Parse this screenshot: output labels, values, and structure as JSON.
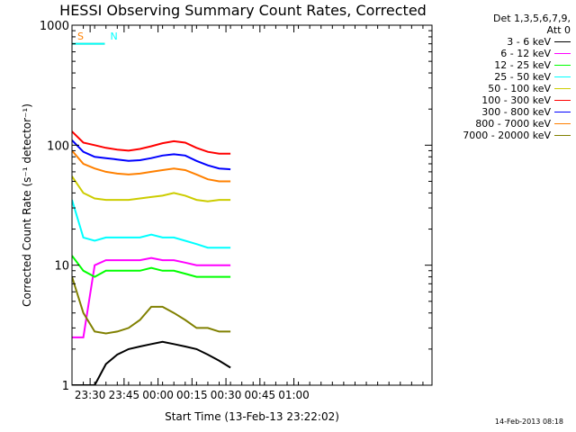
{
  "chart_data": {
    "type": "line",
    "title": "HESSI Observing Summary Count Rates, Corrected",
    "ylabel": "Corrected Count Rate (s⁻¹ detector⁻¹)",
    "xlabel": "Start Time (13-Feb-13 23:22:02)",
    "y_scale": "log",
    "ylim": [
      1,
      1000
    ],
    "xlim_minutes_after_start": [
      0,
      159
    ],
    "y_ticks": [
      "1",
      "10",
      "100",
      "1000"
    ],
    "x_ticks": [
      {
        "label": "23:30",
        "minute": 8
      },
      {
        "label": "23:45",
        "minute": 23
      },
      {
        "label": "00:00",
        "minute": 38
      },
      {
        "label": "00:15",
        "minute": 53
      },
      {
        "label": "00:30",
        "minute": 68
      },
      {
        "label": "00:45",
        "minute": 83
      },
      {
        "label": "01:00",
        "minute": 98
      }
    ],
    "legend_header": [
      "Det 1,3,5,6,7,9,",
      "Att 0"
    ],
    "series": [
      {
        "name": "3 - 6 keV",
        "color": "#000000",
        "x": [
          0,
          5,
          10,
          15,
          20,
          25,
          30,
          35,
          40,
          45,
          50,
          55,
          60,
          65,
          70
        ],
        "values": [
          1,
          1,
          1,
          1.5,
          1.8,
          2,
          2.1,
          2.2,
          2.3,
          2.2,
          2.1,
          2.0,
          1.8,
          1.6,
          1.4
        ]
      },
      {
        "name": "6 - 12 keV",
        "color": "#ff00ff",
        "x": [
          0,
          5,
          10,
          15,
          20,
          25,
          30,
          35,
          40,
          45,
          50,
          55,
          60,
          65,
          70
        ],
        "values": [
          2.5,
          2.5,
          10,
          11,
          11,
          11,
          11,
          11.5,
          11,
          11,
          10.5,
          10,
          10,
          10,
          10
        ]
      },
      {
        "name": "12 - 25 keV",
        "color": "#00ff00",
        "x": [
          0,
          5,
          10,
          15,
          20,
          25,
          30,
          35,
          40,
          45,
          50,
          55,
          60,
          65,
          70
        ],
        "values": [
          12,
          9,
          8,
          9,
          9,
          9,
          9,
          9.5,
          9,
          9,
          8.5,
          8,
          8,
          8,
          8
        ]
      },
      {
        "name": "25 - 50 keV",
        "color": "#00ffff",
        "x": [
          0,
          5,
          10,
          15,
          20,
          25,
          30,
          35,
          40,
          45,
          50,
          55,
          60,
          65,
          70
        ],
        "values": [
          35,
          17,
          16,
          17,
          17,
          17,
          17,
          18,
          17,
          17,
          16,
          15,
          14,
          14,
          14
        ]
      },
      {
        "name": "50 - 100 keV",
        "color": "#cccc00",
        "x": [
          0,
          5,
          10,
          15,
          20,
          25,
          30,
          35,
          40,
          45,
          50,
          55,
          60,
          65,
          70
        ],
        "values": [
          55,
          40,
          36,
          35,
          35,
          35,
          36,
          37,
          38,
          40,
          38,
          35,
          34,
          35,
          35
        ]
      },
      {
        "name": "100 - 300 keV",
        "color": "#ff0000",
        "x": [
          0,
          5,
          10,
          15,
          20,
          25,
          30,
          35,
          40,
          45,
          50,
          55,
          60,
          65,
          70
        ],
        "values": [
          130,
          105,
          100,
          95,
          92,
          90,
          93,
          98,
          104,
          108,
          105,
          95,
          88,
          85,
          85
        ]
      },
      {
        "name": "300 - 800 keV",
        "color": "#0000ff",
        "x": [
          0,
          5,
          10,
          15,
          20,
          25,
          30,
          35,
          40,
          45,
          50,
          55,
          60,
          65,
          70
        ],
        "values": [
          110,
          88,
          80,
          78,
          76,
          74,
          75,
          78,
          82,
          84,
          82,
          74,
          68,
          64,
          63
        ]
      },
      {
        "name": "800 - 7000 keV",
        "color": "#ff8000",
        "x": [
          0,
          5,
          10,
          15,
          20,
          25,
          30,
          35,
          40,
          45,
          50,
          55,
          60,
          65,
          70
        ],
        "values": [
          90,
          70,
          64,
          60,
          58,
          57,
          58,
          60,
          62,
          64,
          62,
          57,
          52,
          50,
          50
        ]
      },
      {
        "name": "7000 - 20000 keV",
        "color": "#808000",
        "x": [
          0,
          5,
          10,
          15,
          20,
          25,
          30,
          35,
          40,
          45,
          50,
          55,
          60,
          65,
          70
        ],
        "values": [
          8,
          4,
          2.8,
          2.7,
          2.8,
          3,
          3.5,
          4.5,
          4.5,
          4,
          3.5,
          3,
          3,
          2.8,
          2.8
        ]
      }
    ],
    "flags": [
      {
        "label": "S",
        "color": "#ff8000",
        "x_start": 0,
        "x_end": 14.5
      },
      {
        "label": "N",
        "color": "#00ffff",
        "x_start": 0,
        "x_end": 14.5
      }
    ],
    "grid": false
  },
  "footer_timestamp": "14-Feb-2013 08:18"
}
